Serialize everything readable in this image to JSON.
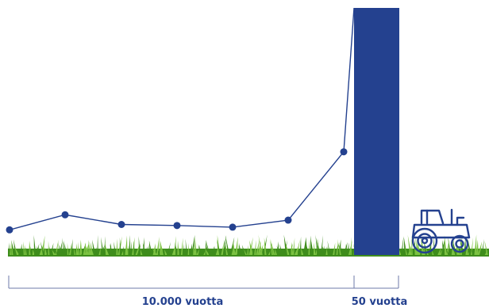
{
  "colors": {
    "primary": "#24418f",
    "grass_dark": "#3f8d1c",
    "grass_light": "#7cc242",
    "scale_line": "#6e79a8"
  },
  "icons": {
    "tractor": "tractor-icon",
    "grass": "grass-strip"
  },
  "chart_data": {
    "type": "line",
    "title": "",
    "xlabel": "",
    "ylabel": "",
    "grid": false,
    "legend": "none",
    "points": [
      {
        "x": 0,
        "y": 4.0
      },
      {
        "x": 1,
        "y": 6.8
      },
      {
        "x": 2,
        "y": 5.0
      },
      {
        "x": 3,
        "y": 4.8
      },
      {
        "x": 4,
        "y": 4.5
      },
      {
        "x": 5,
        "y": 5.8
      },
      {
        "x": 6,
        "y": 18.5
      },
      {
        "x": 7,
        "y": 100
      }
    ],
    "spans": [
      {
        "label": "10.000 vuotta"
      },
      {
        "label": "50 vuotta"
      }
    ]
  }
}
